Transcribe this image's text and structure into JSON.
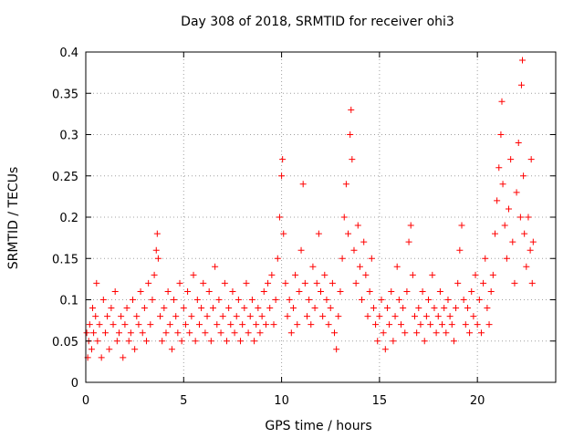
{
  "chart_data": {
    "type": "scatter",
    "title": "Day 308 of 2018, SRMTID for receiver ohi3",
    "xlabel": "GPS time / hours",
    "ylabel": "SRMTID / TECUs",
    "xlim": [
      0,
      24
    ],
    "ylim": [
      0,
      0.4
    ],
    "xticks": [
      0,
      5,
      10,
      15,
      20
    ],
    "xtick_labels": [
      "0",
      "5",
      "10",
      "15",
      "20"
    ],
    "yticks": [
      0,
      0.05,
      0.1,
      0.15,
      0.2,
      0.25,
      0.3,
      0.35,
      0.4
    ],
    "ytick_labels": [
      "0",
      "0.05",
      "0.1",
      "0.15",
      "0.2",
      "0.25",
      "0.3",
      "0.35",
      "0.4"
    ],
    "grid": true,
    "marker": "+",
    "color": "#ff0000",
    "series": [
      {
        "name": "SRMTID",
        "points": [
          [
            0.05,
            0.06
          ],
          [
            0.1,
            0.03
          ],
          [
            0.15,
            0.05
          ],
          [
            0.2,
            0.07
          ],
          [
            0.3,
            0.04
          ],
          [
            0.35,
            0.09
          ],
          [
            0.4,
            0.06
          ],
          [
            0.5,
            0.08
          ],
          [
            0.55,
            0.12
          ],
          [
            0.6,
            0.05
          ],
          [
            0.7,
            0.07
          ],
          [
            0.8,
            0.03
          ],
          [
            0.9,
            0.1
          ],
          [
            1.0,
            0.06
          ],
          [
            1.1,
            0.08
          ],
          [
            1.2,
            0.04
          ],
          [
            1.3,
            0.09
          ],
          [
            1.4,
            0.07
          ],
          [
            1.5,
            0.11
          ],
          [
            1.6,
            0.05
          ],
          [
            1.7,
            0.06
          ],
          [
            1.8,
            0.08
          ],
          [
            1.9,
            0.03
          ],
          [
            2.0,
            0.07
          ],
          [
            2.1,
            0.09
          ],
          [
            2.2,
            0.05
          ],
          [
            2.3,
            0.06
          ],
          [
            2.4,
            0.1
          ],
          [
            2.5,
            0.04
          ],
          [
            2.6,
            0.08
          ],
          [
            2.7,
            0.07
          ],
          [
            2.8,
            0.11
          ],
          [
            2.9,
            0.06
          ],
          [
            3.0,
            0.09
          ],
          [
            3.1,
            0.05
          ],
          [
            3.2,
            0.12
          ],
          [
            3.3,
            0.07
          ],
          [
            3.4,
            0.1
          ],
          [
            3.5,
            0.13
          ],
          [
            3.6,
            0.16
          ],
          [
            3.65,
            0.18
          ],
          [
            3.7,
            0.15
          ],
          [
            3.8,
            0.08
          ],
          [
            3.9,
            0.05
          ],
          [
            4.0,
            0.09
          ],
          [
            4.1,
            0.06
          ],
          [
            4.2,
            0.11
          ],
          [
            4.3,
            0.07
          ],
          [
            4.4,
            0.04
          ],
          [
            4.5,
            0.1
          ],
          [
            4.6,
            0.08
          ],
          [
            4.7,
            0.06
          ],
          [
            4.8,
            0.12
          ],
          [
            4.9,
            0.05
          ],
          [
            5.0,
            0.09
          ],
          [
            5.1,
            0.07
          ],
          [
            5.2,
            0.11
          ],
          [
            5.3,
            0.06
          ],
          [
            5.4,
            0.08
          ],
          [
            5.5,
            0.13
          ],
          [
            5.6,
            0.05
          ],
          [
            5.7,
            0.1
          ],
          [
            5.8,
            0.07
          ],
          [
            5.9,
            0.09
          ],
          [
            6.0,
            0.12
          ],
          [
            6.1,
            0.06
          ],
          [
            6.2,
            0.08
          ],
          [
            6.3,
            0.11
          ],
          [
            6.4,
            0.05
          ],
          [
            6.5,
            0.09
          ],
          [
            6.6,
            0.14
          ],
          [
            6.7,
            0.07
          ],
          [
            6.8,
            0.1
          ],
          [
            6.9,
            0.06
          ],
          [
            7.0,
            0.08
          ],
          [
            7.1,
            0.12
          ],
          [
            7.2,
            0.05
          ],
          [
            7.3,
            0.09
          ],
          [
            7.4,
            0.07
          ],
          [
            7.5,
            0.11
          ],
          [
            7.6,
            0.06
          ],
          [
            7.7,
            0.08
          ],
          [
            7.8,
            0.1
          ],
          [
            7.9,
            0.05
          ],
          [
            8.0,
            0.07
          ],
          [
            8.1,
            0.09
          ],
          [
            8.2,
            0.12
          ],
          [
            8.3,
            0.06
          ],
          [
            8.4,
            0.08
          ],
          [
            8.5,
            0.1
          ],
          [
            8.6,
            0.05
          ],
          [
            8.7,
            0.07
          ],
          [
            8.8,
            0.09
          ],
          [
            8.9,
            0.06
          ],
          [
            9.0,
            0.08
          ],
          [
            9.1,
            0.11
          ],
          [
            9.2,
            0.07
          ],
          [
            9.3,
            0.12
          ],
          [
            9.4,
            0.09
          ],
          [
            9.5,
            0.13
          ],
          [
            9.6,
            0.07
          ],
          [
            9.7,
            0.1
          ],
          [
            9.8,
            0.15
          ],
          [
            9.9,
            0.2
          ],
          [
            10.0,
            0.25
          ],
          [
            10.05,
            0.27
          ],
          [
            10.1,
            0.18
          ],
          [
            10.2,
            0.12
          ],
          [
            10.3,
            0.08
          ],
          [
            10.4,
            0.1
          ],
          [
            10.5,
            0.06
          ],
          [
            10.6,
            0.09
          ],
          [
            10.7,
            0.13
          ],
          [
            10.8,
            0.07
          ],
          [
            10.9,
            0.11
          ],
          [
            11.0,
            0.16
          ],
          [
            11.1,
            0.24
          ],
          [
            11.2,
            0.12
          ],
          [
            11.3,
            0.08
          ],
          [
            11.4,
            0.1
          ],
          [
            11.5,
            0.07
          ],
          [
            11.6,
            0.14
          ],
          [
            11.7,
            0.09
          ],
          [
            11.8,
            0.12
          ],
          [
            11.9,
            0.18
          ],
          [
            12.0,
            0.11
          ],
          [
            12.1,
            0.08
          ],
          [
            12.2,
            0.13
          ],
          [
            12.3,
            0.1
          ],
          [
            12.4,
            0.07
          ],
          [
            12.5,
            0.09
          ],
          [
            12.6,
            0.12
          ],
          [
            12.7,
            0.06
          ],
          [
            12.8,
            0.04
          ],
          [
            12.9,
            0.08
          ],
          [
            13.0,
            0.11
          ],
          [
            13.1,
            0.15
          ],
          [
            13.2,
            0.2
          ],
          [
            13.3,
            0.24
          ],
          [
            13.4,
            0.18
          ],
          [
            13.5,
            0.3
          ],
          [
            13.55,
            0.33
          ],
          [
            13.6,
            0.27
          ],
          [
            13.7,
            0.16
          ],
          [
            13.8,
            0.12
          ],
          [
            13.9,
            0.19
          ],
          [
            14.0,
            0.14
          ],
          [
            14.1,
            0.1
          ],
          [
            14.2,
            0.17
          ],
          [
            14.3,
            0.13
          ],
          [
            14.4,
            0.08
          ],
          [
            14.5,
            0.11
          ],
          [
            14.6,
            0.15
          ],
          [
            14.7,
            0.09
          ],
          [
            14.8,
            0.07
          ],
          [
            14.9,
            0.05
          ],
          [
            15.0,
            0.08
          ],
          [
            15.1,
            0.1
          ],
          [
            15.2,
            0.06
          ],
          [
            15.3,
            0.04
          ],
          [
            15.4,
            0.09
          ],
          [
            15.5,
            0.07
          ],
          [
            15.6,
            0.11
          ],
          [
            15.7,
            0.05
          ],
          [
            15.8,
            0.08
          ],
          [
            15.9,
            0.14
          ],
          [
            16.0,
            0.1
          ],
          [
            16.1,
            0.07
          ],
          [
            16.2,
            0.09
          ],
          [
            16.3,
            0.06
          ],
          [
            16.4,
            0.11
          ],
          [
            16.5,
            0.17
          ],
          [
            16.6,
            0.19
          ],
          [
            16.7,
            0.13
          ],
          [
            16.8,
            0.08
          ],
          [
            16.9,
            0.06
          ],
          [
            17.0,
            0.09
          ],
          [
            17.1,
            0.07
          ],
          [
            17.2,
            0.11
          ],
          [
            17.3,
            0.05
          ],
          [
            17.4,
            0.08
          ],
          [
            17.5,
            0.1
          ],
          [
            17.6,
            0.07
          ],
          [
            17.7,
            0.13
          ],
          [
            17.8,
            0.09
          ],
          [
            17.9,
            0.06
          ],
          [
            18.0,
            0.08
          ],
          [
            18.1,
            0.11
          ],
          [
            18.2,
            0.07
          ],
          [
            18.3,
            0.09
          ],
          [
            18.4,
            0.06
          ],
          [
            18.5,
            0.1
          ],
          [
            18.6,
            0.08
          ],
          [
            18.7,
            0.07
          ],
          [
            18.8,
            0.05
          ],
          [
            18.9,
            0.09
          ],
          [
            19.0,
            0.12
          ],
          [
            19.1,
            0.16
          ],
          [
            19.2,
            0.19
          ],
          [
            19.3,
            0.1
          ],
          [
            19.4,
            0.07
          ],
          [
            19.5,
            0.09
          ],
          [
            19.6,
            0.06
          ],
          [
            19.7,
            0.11
          ],
          [
            19.8,
            0.08
          ],
          [
            19.9,
            0.13
          ],
          [
            20.0,
            0.07
          ],
          [
            20.1,
            0.1
          ],
          [
            20.2,
            0.06
          ],
          [
            20.3,
            0.12
          ],
          [
            20.4,
            0.15
          ],
          [
            20.5,
            0.09
          ],
          [
            20.6,
            0.07
          ],
          [
            20.7,
            0.11
          ],
          [
            20.8,
            0.13
          ],
          [
            20.9,
            0.18
          ],
          [
            21.0,
            0.22
          ],
          [
            21.1,
            0.26
          ],
          [
            21.2,
            0.3
          ],
          [
            21.25,
            0.34
          ],
          [
            21.3,
            0.24
          ],
          [
            21.4,
            0.19
          ],
          [
            21.5,
            0.15
          ],
          [
            21.6,
            0.21
          ],
          [
            21.7,
            0.27
          ],
          [
            21.8,
            0.17
          ],
          [
            21.9,
            0.12
          ],
          [
            22.0,
            0.23
          ],
          [
            22.1,
            0.29
          ],
          [
            22.2,
            0.2
          ],
          [
            22.25,
            0.36
          ],
          [
            22.3,
            0.39
          ],
          [
            22.35,
            0.25
          ],
          [
            22.4,
            0.18
          ],
          [
            22.5,
            0.14
          ],
          [
            22.6,
            0.2
          ],
          [
            22.7,
            0.16
          ],
          [
            22.75,
            0.27
          ],
          [
            22.8,
            0.12
          ],
          [
            22.85,
            0.17
          ]
        ]
      }
    ]
  }
}
